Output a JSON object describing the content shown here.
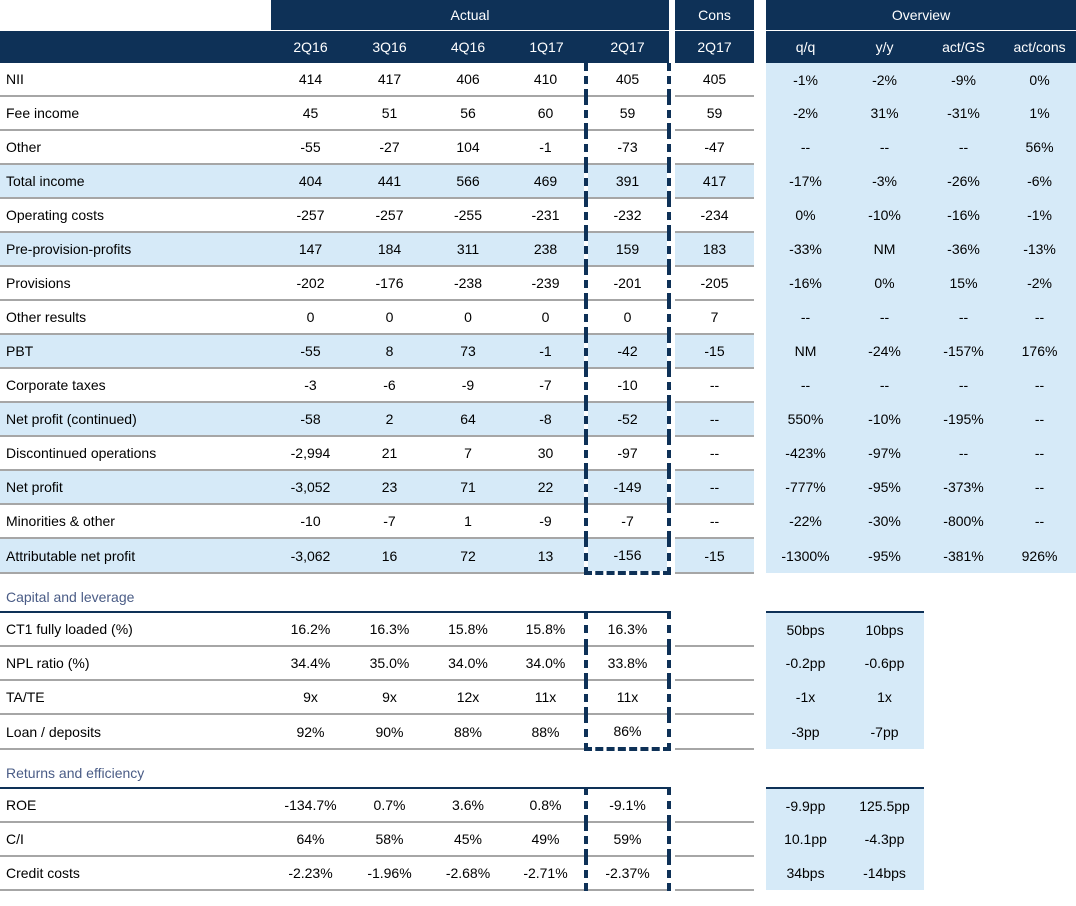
{
  "header": {
    "group_actual": "Actual",
    "group_cons": "Cons",
    "group_overview": "Overview",
    "actual_columns": [
      "2Q16",
      "3Q16",
      "4Q16",
      "1Q17",
      "2Q17"
    ],
    "cons_column": "2Q17",
    "overview_columns": [
      "q/q",
      "y/y",
      "act/GS",
      "act/cons"
    ]
  },
  "income": [
    {
      "label": "NII",
      "actual": [
        "414",
        "417",
        "406",
        "410",
        "405"
      ],
      "cons": "405",
      "overview": [
        "-1%",
        "-2%",
        "-9%",
        "0%"
      ],
      "highlight": false
    },
    {
      "label": "Fee income",
      "actual": [
        "45",
        "51",
        "56",
        "60",
        "59"
      ],
      "cons": "59",
      "overview": [
        "-2%",
        "31%",
        "-31%",
        "1%"
      ],
      "highlight": false
    },
    {
      "label": "Other",
      "actual": [
        "-55",
        "-27",
        "104",
        "-1",
        "-73"
      ],
      "cons": "-47",
      "overview": [
        "--",
        "--",
        "--",
        "56%"
      ],
      "highlight": false
    },
    {
      "label": "Total income",
      "actual": [
        "404",
        "441",
        "566",
        "469",
        "391"
      ],
      "cons": "417",
      "overview": [
        "-17%",
        "-3%",
        "-26%",
        "-6%"
      ],
      "highlight": true
    },
    {
      "label": "Operating costs",
      "actual": [
        "-257",
        "-257",
        "-255",
        "-231",
        "-232"
      ],
      "cons": "-234",
      "overview": [
        "0%",
        "-10%",
        "-16%",
        "-1%"
      ],
      "highlight": false
    },
    {
      "label": "Pre-provision-profits",
      "actual": [
        "147",
        "184",
        "311",
        "238",
        "159"
      ],
      "cons": "183",
      "overview": [
        "-33%",
        "NM",
        "-36%",
        "-13%"
      ],
      "highlight": true
    },
    {
      "label": "Provisions",
      "actual": [
        "-202",
        "-176",
        "-238",
        "-239",
        "-201"
      ],
      "cons": "-205",
      "overview": [
        "-16%",
        "0%",
        "15%",
        "-2%"
      ],
      "highlight": false
    },
    {
      "label": "Other results",
      "actual": [
        "0",
        "0",
        "0",
        "0",
        "0"
      ],
      "cons": "7",
      "overview": [
        "--",
        "--",
        "--",
        "--"
      ],
      "highlight": false
    },
    {
      "label": "PBT",
      "actual": [
        "-55",
        "8",
        "73",
        "-1",
        "-42"
      ],
      "cons": "-15",
      "overview": [
        "NM",
        "-24%",
        "-157%",
        "176%"
      ],
      "highlight": true
    },
    {
      "label": "Corporate taxes",
      "actual": [
        "-3",
        "-6",
        "-9",
        "-7",
        "-10"
      ],
      "cons": "--",
      "overview": [
        "--",
        "--",
        "--",
        "--"
      ],
      "highlight": false
    },
    {
      "label": "Net profit (continued)",
      "actual": [
        "-58",
        "2",
        "64",
        "-8",
        "-52"
      ],
      "cons": "--",
      "overview": [
        "550%",
        "-10%",
        "-195%",
        "--"
      ],
      "highlight": true
    },
    {
      "label": "Discontinued operations",
      "actual": [
        "-2,994",
        "21",
        "7",
        "30",
        "-97"
      ],
      "cons": "--",
      "overview": [
        "-423%",
        "-97%",
        "--",
        "--"
      ],
      "highlight": false
    },
    {
      "label": "Net profit",
      "actual": [
        "-3,052",
        "23",
        "71",
        "22",
        "-149"
      ],
      "cons": "--",
      "overview": [
        "-777%",
        "-95%",
        "-373%",
        "--"
      ],
      "highlight": true
    },
    {
      "label": "Minorities & other",
      "actual": [
        "-10",
        "-7",
        "1",
        "-9",
        "-7"
      ],
      "cons": "--",
      "overview": [
        "-22%",
        "-30%",
        "-800%",
        "--"
      ],
      "highlight": false
    },
    {
      "label": "Attributable net profit",
      "actual": [
        "-3,062",
        "16",
        "72",
        "13",
        "-156"
      ],
      "cons": "-15",
      "overview": [
        "-1300%",
        "-95%",
        "-381%",
        "926%"
      ],
      "highlight": true
    }
  ],
  "capital": {
    "title": "Capital and leverage",
    "rows": [
      {
        "label": "CT1 fully loaded (%)",
        "actual": [
          "16.2%",
          "16.3%",
          "15.8%",
          "15.8%",
          "16.3%"
        ],
        "overview": [
          "50bps",
          "10bps"
        ]
      },
      {
        "label": "NPL ratio (%)",
        "actual": [
          "34.4%",
          "35.0%",
          "34.0%",
          "34.0%",
          "33.8%"
        ],
        "overview": [
          "-0.2pp",
          "-0.6pp"
        ]
      },
      {
        "label": "TA/TE",
        "actual": [
          "9x",
          "9x",
          "12x",
          "11x",
          "11x"
        ],
        "overview": [
          "-1x",
          "1x"
        ]
      },
      {
        "label": "Loan / deposits",
        "actual": [
          "92%",
          "90%",
          "88%",
          "88%",
          "86%"
        ],
        "overview": [
          "-3pp",
          "-7pp"
        ]
      }
    ]
  },
  "returns": {
    "title": "Returns and efficiency",
    "rows": [
      {
        "label": "ROE",
        "actual": [
          "-134.7%",
          "0.7%",
          "3.6%",
          "0.8%",
          "-9.1%"
        ],
        "overview": [
          "-9.9pp",
          "125.5pp"
        ]
      },
      {
        "label": "C/I",
        "actual": [
          "64%",
          "58%",
          "45%",
          "49%",
          "59%"
        ],
        "overview": [
          "10.1pp",
          "-4.3pp"
        ]
      },
      {
        "label": "Credit costs",
        "actual": [
          "-2.23%",
          "-1.96%",
          "-2.68%",
          "-2.71%",
          "-2.37%"
        ],
        "overview": [
          "34bps",
          "-14bps"
        ]
      }
    ]
  }
}
